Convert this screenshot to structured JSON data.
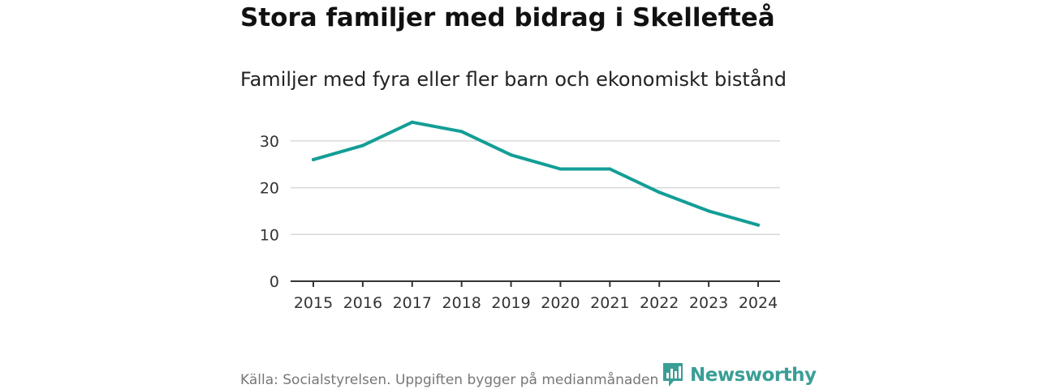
{
  "header": {
    "title": "Stora familjer med bidrag i Skellefteå",
    "subtitle": "Familjer med fyra eller fler barn och ekonomiskt bistånd"
  },
  "chart_data": {
    "type": "line",
    "title": "Stora familjer med bidrag i Skellefteå",
    "subtitle": "Familjer med fyra eller fler barn och ekonomiskt bistånd",
    "xlabel": "",
    "ylabel": "",
    "x": [
      "2015",
      "2016",
      "2017",
      "2018",
      "2019",
      "2020",
      "2021",
      "2022",
      "2023",
      "2024"
    ],
    "series": [
      {
        "values": [
          26,
          29,
          34,
          32,
          27,
          24,
          24,
          19,
          15,
          12
        ]
      }
    ],
    "yticks": [
      "0",
      "10",
      "20",
      "30"
    ],
    "ylim": [
      0,
      35
    ],
    "grid": true,
    "line_color": "#139e96",
    "grid_color": "#d9d9d9",
    "axis_color": "#333333"
  },
  "footer": {
    "source": "Källa: Socialstyrelsen. Uppgiften bygger på medianmånaden för varje år",
    "brand": "Newsworthy",
    "brand_icon": "newsworthy-logo-icon",
    "brand_color": "#3a9e96"
  }
}
